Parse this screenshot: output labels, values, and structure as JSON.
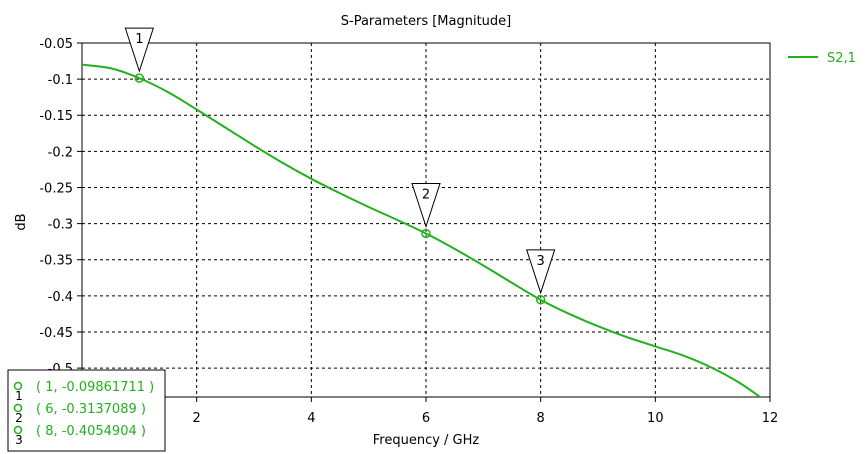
{
  "chart_data": {
    "type": "line",
    "title": "S-Parameters [Magnitude]",
    "xlabel": "Frequency / GHz",
    "ylabel": "dB",
    "xlim": [
      0,
      12
    ],
    "ylim": [
      -0.54,
      -0.05
    ],
    "grid": true,
    "legend_position": "top-right",
    "x_ticks": [
      2,
      4,
      6,
      8,
      10,
      12
    ],
    "x_tick_labels": [
      "2",
      "4",
      "6",
      "8",
      "10",
      "12"
    ],
    "y_ticks": [
      -0.05,
      -0.1,
      -0.15,
      -0.2,
      -0.25,
      -0.3,
      -0.35,
      -0.4,
      -0.45,
      -0.5
    ],
    "y_tick_labels": [
      "-0.05",
      "-0.1",
      "-0.15",
      "-0.2",
      "-0.25",
      "-0.3",
      "-0.35",
      "-0.4",
      "-0.45",
      "-0.5"
    ],
    "series": [
      {
        "name": "S2,1",
        "color": "#22b01c",
        "x": [
          0,
          0.5,
          1,
          1.5,
          2,
          2.5,
          3,
          3.5,
          4,
          4.5,
          5,
          5.5,
          6,
          6.5,
          7,
          7.5,
          8,
          8.5,
          9,
          9.5,
          10,
          10.5,
          11,
          11.5,
          12
        ],
        "y": [
          -0.08,
          -0.085,
          -0.0986,
          -0.118,
          -0.142,
          -0.167,
          -0.192,
          -0.216,
          -0.238,
          -0.258,
          -0.277,
          -0.295,
          -0.3137,
          -0.335,
          -0.358,
          -0.382,
          -0.4055,
          -0.425,
          -0.442,
          -0.457,
          -0.47,
          -0.483,
          -0.5,
          -0.522,
          -0.55
        ]
      }
    ],
    "markers": [
      {
        "label": "1",
        "x": 1,
        "y": -0.09861711,
        "readout": "( 1, -0.09861711 )"
      },
      {
        "label": "2",
        "x": 6,
        "y": -0.3137089,
        "readout": "( 6, -0.3137089 )"
      },
      {
        "label": "3",
        "x": 8,
        "y": -0.4054904,
        "readout": "( 8, -0.4054904 )"
      }
    ]
  }
}
